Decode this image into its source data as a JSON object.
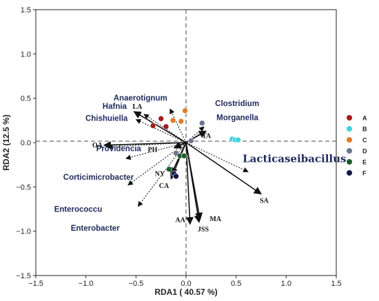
{
  "chart_data": {
    "type": "scatter",
    "xlabel": "RDA1 ( 40.57 %)",
    "ylabel": "RDA2  (12.5 %)",
    "xlim": [
      -1.5,
      1.5
    ],
    "ylim": [
      -1.5,
      1.5
    ],
    "xticks": [
      -1.5,
      -1.0,
      -0.5,
      0.0,
      0.5,
      1.0,
      1.5
    ],
    "yticks": [
      -1.5,
      -1.0,
      -0.5,
      0.0,
      0.5,
      1.0,
      1.5
    ],
    "xtick_labels": [
      "−1.5",
      "−1.0",
      "−0.5",
      "0.0",
      "0.5",
      "1.0",
      "1.5"
    ],
    "ytick_labels": [
      "−1.5",
      "−1.0",
      "−0.5",
      "0.0",
      "0.5",
      "1.0",
      "1.5"
    ],
    "grid": false,
    "reference_lines": "dashed at x=0 and y=0",
    "legend_position": "right",
    "groups": [
      {
        "name": "A",
        "color": "#a31d1d",
        "points": [
          [
            -0.33,
            0.19
          ],
          [
            -0.25,
            0.27
          ],
          [
            -0.2,
            0.18
          ]
        ]
      },
      {
        "name": "B",
        "color": "#3fd3df",
        "points": [
          [
            0.46,
            0.04
          ],
          [
            0.49,
            0.03
          ],
          [
            0.52,
            0.03
          ]
        ]
      },
      {
        "name": "C",
        "color": "#e27b26",
        "points": [
          [
            -0.13,
            0.25
          ],
          [
            -0.05,
            0.24
          ],
          [
            -0.01,
            0.36
          ]
        ]
      },
      {
        "name": "D",
        "color": "#6b7690",
        "points": [
          [
            -0.1,
            -0.12
          ],
          [
            0.05,
            0.02
          ],
          [
            0.16,
            0.22
          ]
        ]
      },
      {
        "name": "E",
        "color": "#1d5e2c",
        "points": [
          [
            -0.17,
            -0.3
          ],
          [
            -0.06,
            -0.15
          ],
          [
            -0.02,
            -0.15
          ]
        ]
      },
      {
        "name": "F",
        "color": "#101846",
        "points": [
          [
            -0.12,
            -0.35
          ],
          [
            -0.1,
            -0.38
          ]
        ]
      }
    ],
    "genus_arrows": [
      {
        "label": "Anaerotignum",
        "x": -0.16,
        "y": 0.38
      },
      {
        "label": "Hafnia",
        "x": -0.42,
        "y": 0.32
      },
      {
        "label": "Chishuiella",
        "x": -0.5,
        "y": 0.26
      },
      {
        "label": "Clostridium",
        "x": 0.18,
        "y": 0.18
      },
      {
        "label": "Morganella",
        "x": 0.18,
        "y": 0.13
      },
      {
        "label": "Providencia",
        "x": -0.78,
        "y": -0.05
      },
      {
        "label": "Corticimicrobacter",
        "x": -0.6,
        "y": -0.18
      },
      {
        "label": "Enterobacter",
        "x": -0.58,
        "y": -0.48
      },
      {
        "label": "Enterococcu",
        "x": -0.48,
        "y": -0.72
      },
      {
        "label": "Lacticaseibacillus",
        "x": 0.62,
        "y": -0.33
      }
    ],
    "env_arrows": [
      {
        "label": "LA",
        "x": -0.52,
        "y": 0.35
      },
      {
        "label": "TA",
        "x": 0.2,
        "y": 0.13
      },
      {
        "label": "OA",
        "x": -0.82,
        "y": -0.03
      },
      {
        "label": "PH",
        "x": -0.12,
        "y": -0.06
      },
      {
        "label": "NY",
        "x": -0.15,
        "y": -0.36
      },
      {
        "label": "CA",
        "x": -0.15,
        "y": -0.41
      },
      {
        "label": "SA",
        "x": 0.75,
        "y": -0.58
      },
      {
        "label": "MA",
        "x": 0.14,
        "y": -0.87
      },
      {
        "label": "JSS",
        "x": 0.13,
        "y": -0.9
      },
      {
        "label": "AA",
        "x": 0.04,
        "y": -0.92
      }
    ]
  }
}
